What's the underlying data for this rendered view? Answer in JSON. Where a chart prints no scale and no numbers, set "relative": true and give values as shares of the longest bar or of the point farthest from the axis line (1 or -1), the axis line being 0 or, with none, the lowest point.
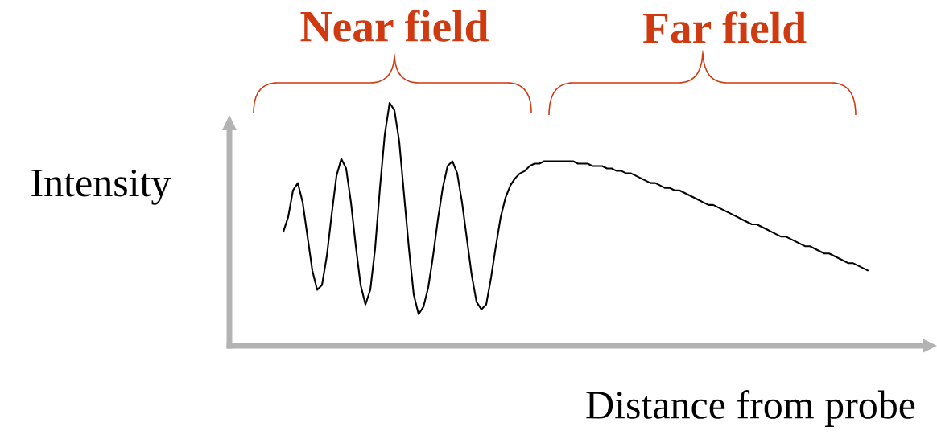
{
  "chart_data": {
    "type": "line",
    "relative": true,
    "xlabel": "Distance from probe",
    "ylabel": "Intensity",
    "color": "#000000",
    "annotations": [
      "Near field",
      "Far field"
    ],
    "categories": [
      null,
      null,
      null,
      null,
      null,
      null,
      null,
      null,
      null,
      null,
      null,
      null,
      null,
      null,
      null,
      null,
      null,
      null,
      null,
      null,
      null,
      null,
      null,
      null,
      null,
      null,
      null,
      null,
      null,
      null,
      null,
      null,
      null,
      null,
      null,
      null,
      null,
      null,
      null,
      null,
      null,
      null,
      null,
      null,
      null,
      null,
      null,
      null,
      null,
      null,
      null,
      null,
      null,
      null,
      null,
      null,
      null,
      null,
      null,
      null,
      null,
      null,
      null,
      null,
      null,
      null,
      null,
      null,
      null,
      null,
      null,
      null,
      null,
      null,
      null,
      null,
      null,
      null,
      null,
      null,
      null,
      null,
      null,
      null,
      null,
      null,
      null,
      null,
      null,
      null,
      null,
      null,
      null,
      null,
      null,
      null,
      null,
      null,
      null,
      null,
      null,
      null,
      null,
      null,
      null,
      null,
      null,
      null,
      null,
      null,
      null,
      null,
      null,
      null,
      null,
      null,
      null,
      null,
      null,
      null,
      null,
      null
    ],
    "values": [
      0.47,
      0.53,
      0.64,
      0.67,
      0.59,
      0.45,
      0.31,
      0.23,
      0.25,
      0.37,
      0.54,
      0.7,
      0.77,
      0.73,
      0.59,
      0.41,
      0.25,
      0.17,
      0.23,
      0.4,
      0.65,
      0.87,
      1.0,
      0.97,
      0.84,
      0.62,
      0.4,
      0.21,
      0.13,
      0.16,
      0.24,
      0.37,
      0.52,
      0.65,
      0.74,
      0.76,
      0.71,
      0.59,
      0.44,
      0.29,
      0.18,
      0.15,
      0.17,
      0.28,
      0.41,
      0.53,
      0.61,
      0.66,
      0.69,
      0.71,
      0.72,
      0.74,
      0.75,
      0.75,
      0.76,
      0.76,
      0.76,
      0.76,
      0.76,
      0.76,
      0.76,
      0.75,
      0.75,
      0.75,
      0.74,
      0.74,
      0.74,
      0.73,
      0.73,
      0.72,
      0.72,
      0.71,
      0.71,
      0.7,
      0.69,
      0.68,
      0.67,
      0.67,
      0.66,
      0.65,
      0.65,
      0.64,
      0.64,
      0.63,
      0.62,
      0.61,
      0.6,
      0.59,
      0.58,
      0.58,
      0.57,
      0.56,
      0.55,
      0.54,
      0.53,
      0.52,
      0.51,
      0.5,
      0.5,
      0.49,
      0.48,
      0.47,
      0.46,
      0.45,
      0.45,
      0.44,
      0.43,
      0.42,
      0.41,
      0.41,
      0.4,
      0.39,
      0.38,
      0.38,
      0.37,
      0.36,
      0.35,
      0.34,
      0.34,
      0.33,
      0.32,
      0.31
    ]
  }
}
